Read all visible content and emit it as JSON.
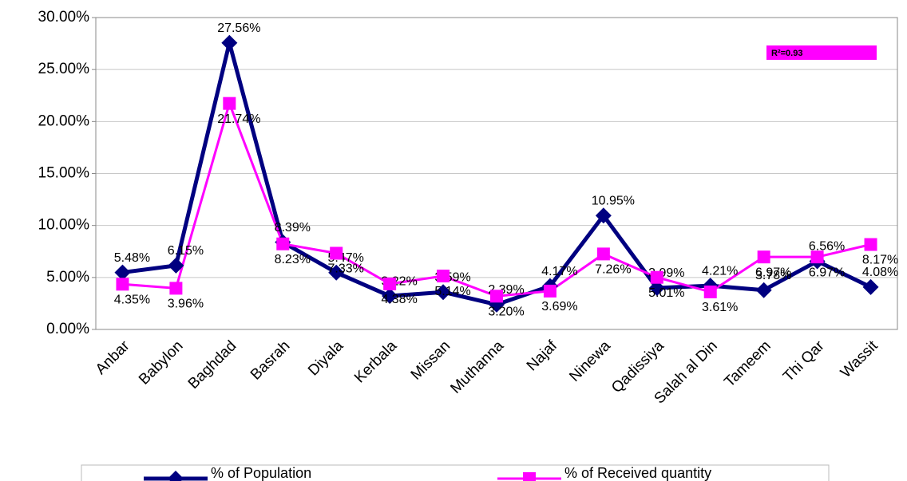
{
  "chart_data": {
    "type": "line",
    "annotation": "R²=0.93",
    "categories": [
      "Anbar",
      "Babylon",
      "Baghdad",
      "Basrah",
      "Diyala",
      "Kerbala",
      "Missan",
      "Muthanna",
      "Najaf",
      "Ninewa",
      "Qadissiya",
      "Salah al Din",
      "Tameem",
      "Thi Qar",
      "Wassit"
    ],
    "series": [
      {
        "name": "% of Population",
        "color": "#000080",
        "marker": "diamond",
        "values": [
          5.48,
          6.15,
          27.56,
          8.39,
          5.47,
          3.22,
          3.59,
          2.39,
          4.17,
          10.95,
          3.99,
          4.21,
          3.78,
          6.56,
          4.08
        ],
        "value_labels": [
          "5.48%",
          "6.15%",
          "27.56%",
          "8.39%",
          "5.47%",
          "3.22%",
          "3.59%",
          "2.39%",
          "4.17%",
          "10.95%",
          "3.99%",
          "4.21%",
          "3.78%",
          "6.56%",
          "4.08%"
        ]
      },
      {
        "name": "% of Received quantity",
        "color": "#ff00ff",
        "marker": "square",
        "values": [
          4.35,
          3.96,
          21.74,
          8.23,
          7.33,
          4.38,
          5.14,
          3.2,
          3.69,
          7.26,
          5.01,
          3.61,
          6.97,
          6.97,
          8.17
        ],
        "value_labels": [
          "4.35%",
          "3.96%",
          "21.74%",
          "8.23%",
          "7.33%",
          "4.38%",
          "5.14%",
          "3.20%",
          "3.69%",
          "7.26%",
          "5.01%",
          "3.61%",
          "6.97%",
          "6.97%",
          "8.17%"
        ]
      }
    ],
    "ylim": [
      0,
      30
    ],
    "yticks": [
      {
        "value": 0,
        "label": "0.00%"
      },
      {
        "value": 5,
        "label": "5.00%"
      },
      {
        "value": 10,
        "label": "10.00%"
      },
      {
        "value": 15,
        "label": "15.00%"
      },
      {
        "value": 20,
        "label": "20.00%"
      },
      {
        "value": 25,
        "label": "25.00%"
      },
      {
        "value": 30,
        "label": "30.00%"
      }
    ],
    "grid": true,
    "legend": "bottom"
  }
}
